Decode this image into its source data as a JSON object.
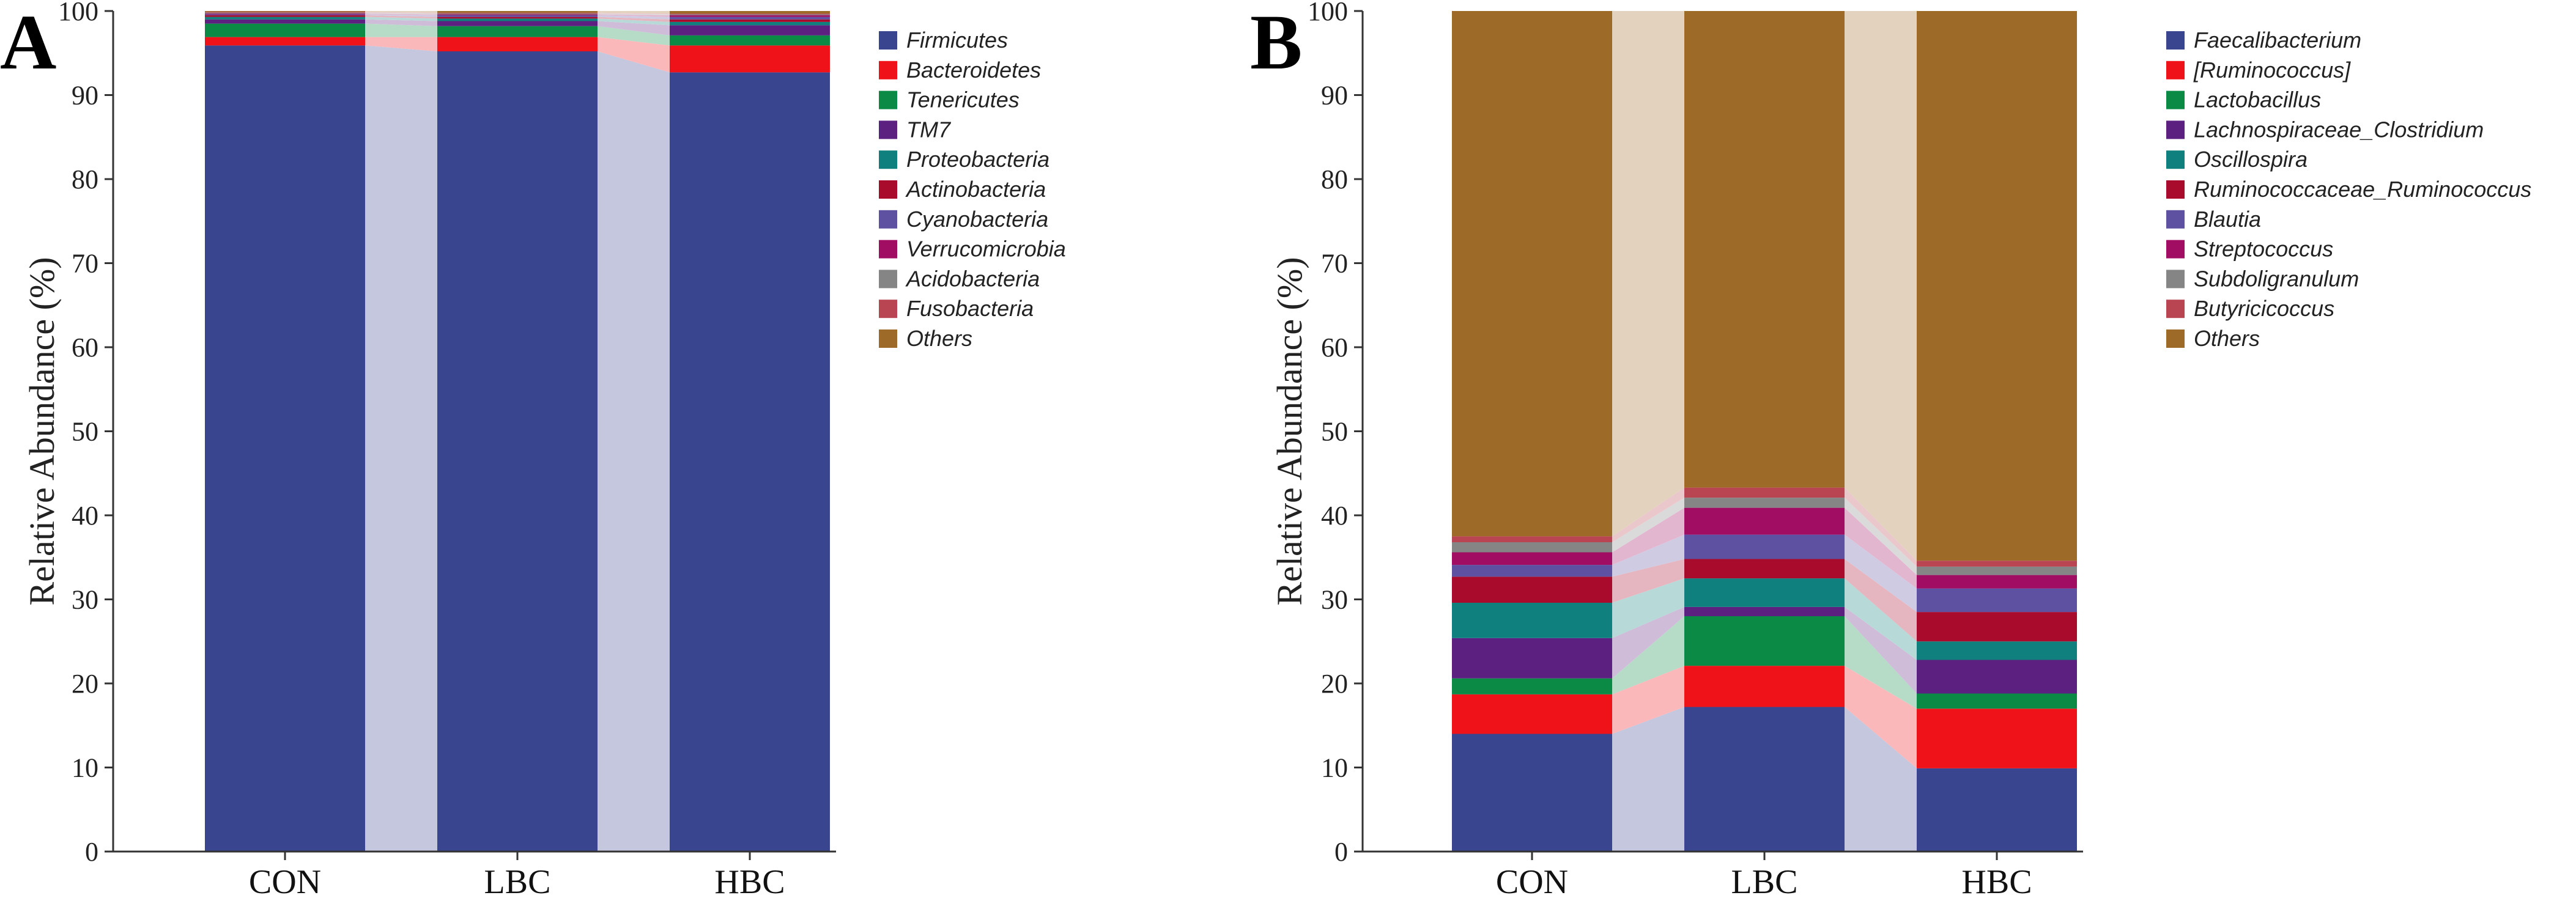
{
  "chart_data": [
    {
      "type": "bar",
      "stacked": true,
      "panel_label": "A",
      "categories": [
        "CON",
        "LBC",
        "HBC"
      ],
      "ylabel": "Relative Abundance (%)",
      "ylim": [
        0,
        100
      ],
      "yticks": [
        "0",
        "10",
        "20",
        "30",
        "40",
        "50",
        "60",
        "70",
        "80",
        "90",
        "100"
      ],
      "series": [
        {
          "name": "Firmicutes",
          "color": "#3a458f",
          "values": [
            95.9,
            95.2,
            92.7
          ]
        },
        {
          "name": "Bacteroidetes",
          "color": "#ef1218",
          "values": [
            1.0,
            1.7,
            3.2
          ]
        },
        {
          "name": "Tenericutes",
          "color": "#0a8a45",
          "values": [
            1.6,
            1.3,
            1.2
          ]
        },
        {
          "name": "TM7",
          "color": "#5c2180",
          "values": [
            0.5,
            0.6,
            1.2
          ]
        },
        {
          "name": "Proteobacteria",
          "color": "#0f807d",
          "values": [
            0.3,
            0.3,
            0.4
          ]
        },
        {
          "name": "Actinobacteria",
          "color": "#a80b2b",
          "values": [
            0.2,
            0.2,
            0.3
          ]
        },
        {
          "name": "Cyanobacteria",
          "color": "#5f51a1",
          "values": [
            0.1,
            0.2,
            0.3
          ]
        },
        {
          "name": "Verrucomicrobia",
          "color": "#a00d63",
          "values": [
            0.1,
            0.1,
            0.2
          ]
        },
        {
          "name": "Acidobacteria",
          "color": "#858585",
          "values": [
            0.1,
            0.1,
            0.1
          ]
        },
        {
          "name": "Fusobacteria",
          "color": "#ba4552",
          "values": [
            0.1,
            0.1,
            0.1
          ]
        },
        {
          "name": "Others",
          "color": "#9d6a27",
          "values": [
            0.1,
            0.2,
            0.3
          ]
        }
      ]
    },
    {
      "type": "bar",
      "stacked": true,
      "panel_label": "B",
      "categories": [
        "CON",
        "LBC",
        "HBC"
      ],
      "ylabel": "Relative Abundance (%)",
      "ylim": [
        0,
        100
      ],
      "yticks": [
        "0",
        "10",
        "20",
        "30",
        "40",
        "50",
        "60",
        "70",
        "80",
        "90",
        "100"
      ],
      "series": [
        {
          "name": "Faecalibacterium",
          "color": "#3a458f",
          "values": [
            14.0,
            17.2,
            9.9
          ]
        },
        {
          "name": "[Ruminococcus]",
          "color": "#ef1218",
          "values": [
            4.7,
            4.9,
            7.1
          ]
        },
        {
          "name": "Lactobacillus",
          "color": "#0a8a45",
          "values": [
            1.9,
            5.9,
            1.8
          ]
        },
        {
          "name": "Lachnospiraceae_Clostridium",
          "color": "#5c2180",
          "values": [
            4.8,
            1.1,
            4.0
          ]
        },
        {
          "name": "Oscillospira",
          "color": "#0f807d",
          "values": [
            4.2,
            3.4,
            2.2
          ]
        },
        {
          "name": "Ruminococcaceae_Ruminococcus",
          "color": "#a80b2b",
          "values": [
            3.1,
            2.3,
            3.5
          ]
        },
        {
          "name": "Blautia",
          "color": "#5f51a1",
          "values": [
            1.4,
            2.9,
            2.8
          ]
        },
        {
          "name": "Streptococcus",
          "color": "#a00d63",
          "values": [
            1.5,
            3.2,
            1.6
          ]
        },
        {
          "name": "Subdoligranulum",
          "color": "#858585",
          "values": [
            1.2,
            1.2,
            1.0
          ]
        },
        {
          "name": "Butyricicoccus",
          "color": "#ba4552",
          "values": [
            0.7,
            1.2,
            0.7
          ]
        },
        {
          "name": "Others",
          "color": "#9d6a27",
          "values": [
            62.5,
            56.7,
            65.4
          ]
        }
      ]
    }
  ]
}
